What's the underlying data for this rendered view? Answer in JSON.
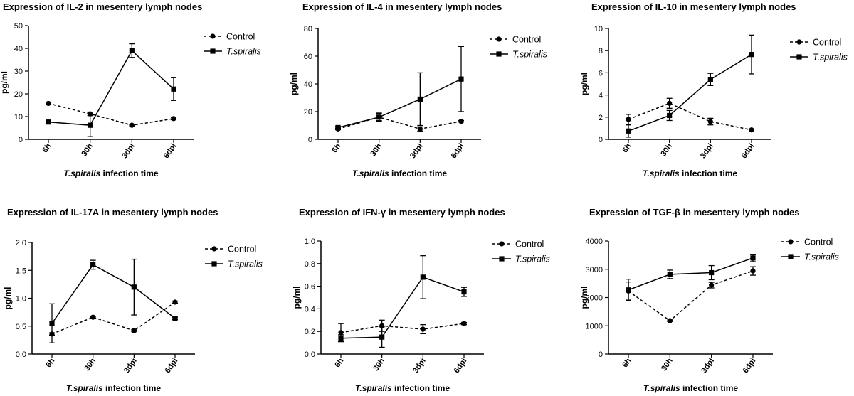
{
  "chart_data": [
    {
      "type": "line",
      "title": "Expression of IL-2 in mesentery lymph nodes",
      "xlabel_italic": "T.spiralis",
      "xlabel_rest": " infection time",
      "ylabel": "pg/ml",
      "categories": [
        "6h",
        "30h",
        "3dpi",
        "6dpi"
      ],
      "ylim": [
        0,
        50
      ],
      "yticks": [
        0,
        10,
        20,
        30,
        40,
        50
      ],
      "legend_position": "top-right",
      "series": [
        {
          "name": "Control",
          "values": [
            15.8,
            11.2,
            6.2,
            9.1
          ],
          "errors": [
            0.4,
            0.8,
            0.3,
            0.5
          ],
          "style": "dashed",
          "marker": "circle"
        },
        {
          "name": "T.spiralis",
          "values": [
            7.6,
            6.2,
            39.0,
            22.1
          ],
          "errors": [
            0.5,
            5.0,
            3.0,
            5.0
          ],
          "style": "solid",
          "marker": "square"
        }
      ]
    },
    {
      "type": "line",
      "title": "Expression of IL-4 in mesentery lymph nodes",
      "xlabel_italic": "T.spiralis",
      "xlabel_rest": " infection time",
      "ylabel": "pg/ml",
      "categories": [
        "6h",
        "30h",
        "3dpi",
        "6dpi"
      ],
      "ylim": [
        0,
        80
      ],
      "yticks": [
        0,
        20,
        40,
        60,
        80
      ],
      "legend_position": "top-right",
      "series": [
        {
          "name": "Control",
          "values": [
            7.5,
            16.0,
            7.5,
            13.0
          ],
          "errors": [
            0.6,
            3.0,
            1.5,
            0.6
          ],
          "style": "dashed",
          "marker": "circle"
        },
        {
          "name": "T.spiralis",
          "values": [
            8.5,
            16.0,
            29.0,
            43.5
          ],
          "errors": [
            0.8,
            2.5,
            19.0,
            23.5
          ],
          "style": "solid",
          "marker": "square"
        }
      ]
    },
    {
      "type": "line",
      "title": "Expression of IL-10 in mesentery lymph nodes",
      "xlabel_italic": "T.spiralis",
      "xlabel_rest": " infection time",
      "ylabel": "pg/ml",
      "categories": [
        "6h",
        "30h",
        "3dpi",
        "6dpi"
      ],
      "ylim": [
        0,
        10
      ],
      "yticks": [
        0,
        2,
        4,
        6,
        8,
        10
      ],
      "legend_position": "top-right",
      "series": [
        {
          "name": "Control",
          "values": [
            1.8,
            3.25,
            1.6,
            0.85
          ],
          "errors": [
            0.45,
            0.45,
            0.3,
            0.1
          ],
          "style": "dashed",
          "marker": "circle"
        },
        {
          "name": "T.spiralis",
          "values": [
            0.75,
            2.15,
            5.4,
            7.65
          ],
          "errors": [
            0.55,
            0.45,
            0.55,
            1.75
          ],
          "style": "solid",
          "marker": "square"
        }
      ]
    },
    {
      "type": "line",
      "title": "Expression of IL-17A in mesentery lymph nodes",
      "xlabel_italic": "T.spiralis",
      "xlabel_rest": " infection time",
      "ylabel": "pg/ml",
      "categories": [
        "6h",
        "30h",
        "3dpi",
        "6dpi"
      ],
      "ylim": [
        0,
        2.0
      ],
      "yticks": [
        0,
        0.5,
        1.0,
        1.5,
        2.0
      ],
      "yticklabels": [
        "0.0",
        "0.5",
        "1.0",
        "1.5",
        "2.0"
      ],
      "legend_position": "top-right",
      "series": [
        {
          "name": "Control",
          "values": [
            0.36,
            0.66,
            0.42,
            0.93
          ],
          "errors": [
            0.02,
            0.01,
            0.02,
            0.02
          ],
          "style": "dashed",
          "marker": "circle"
        },
        {
          "name": "T.spiralis",
          "values": [
            0.55,
            1.6,
            1.2,
            0.64
          ],
          "errors": [
            0.35,
            0.08,
            0.5,
            0.02
          ],
          "style": "solid",
          "marker": "square"
        }
      ]
    },
    {
      "type": "line",
      "title": "Expression of IFN-γ in mesentery lymph nodes",
      "xlabel_italic": "T.spiralis",
      "xlabel_rest": " infection time",
      "ylabel": "pg/ml",
      "categories": [
        "6h",
        "30h",
        "3dpi",
        "6dpi"
      ],
      "ylim": [
        0,
        1.0
      ],
      "yticks": [
        0,
        0.2,
        0.4,
        0.6,
        0.8,
        1.0
      ],
      "yticklabels": [
        "0.0",
        "0.2",
        "0.4",
        "0.6",
        "0.8",
        "1.0"
      ],
      "legend_position": "top-right",
      "series": [
        {
          "name": "Control",
          "values": [
            0.19,
            0.25,
            0.22,
            0.27
          ],
          "errors": [
            0.08,
            0.05,
            0.04,
            0.01
          ],
          "style": "dashed",
          "marker": "circle"
        },
        {
          "name": "T.spiralis",
          "values": [
            0.14,
            0.15,
            0.68,
            0.55
          ],
          "errors": [
            0.03,
            0.09,
            0.19,
            0.04
          ],
          "style": "solid",
          "marker": "square"
        }
      ]
    },
    {
      "type": "line",
      "title": "Expression of TGF-β in mesentery lymph nodes",
      "xlabel_italic": "T.spiralis",
      "xlabel_rest": " infection time",
      "ylabel": "pg/ml",
      "categories": [
        "6h",
        "30h",
        "3dpi",
        "6dpi"
      ],
      "ylim": [
        0,
        4000
      ],
      "yticks": [
        0,
        1000,
        2000,
        3000,
        4000
      ],
      "legend_position": "top-right",
      "series": [
        {
          "name": "Control",
          "values": [
            2230,
            1180,
            2440,
            2940
          ],
          "errors": [
            320,
            30,
            100,
            150
          ],
          "style": "dashed",
          "marker": "circle"
        },
        {
          "name": "T.spiralis",
          "values": [
            2270,
            2820,
            2880,
            3400
          ],
          "errors": [
            380,
            150,
            250,
            130
          ],
          "style": "solid",
          "marker": "square"
        }
      ]
    }
  ]
}
